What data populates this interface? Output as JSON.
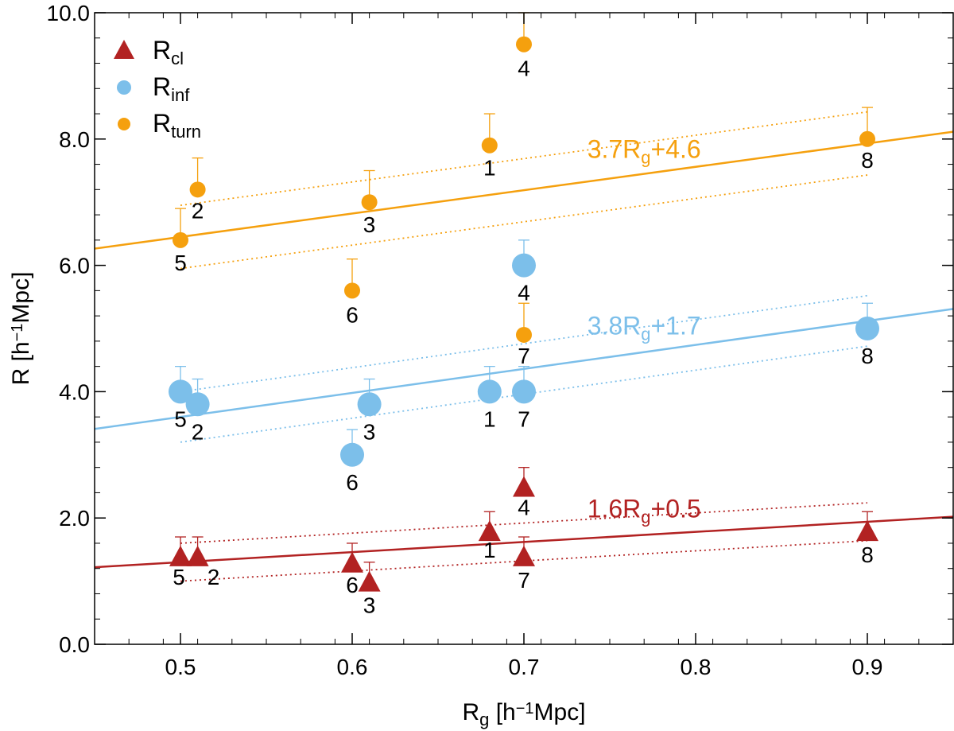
{
  "chart_data": {
    "type": "scatter",
    "xlabel_main": "R",
    "xlabel_sub": "g",
    "xlabel_unit": "[h",
    "xlabel_exp": "−1",
    "xlabel_tail": "Mpc]",
    "ylabel_main": "R [h",
    "ylabel_exp": "−1",
    "ylabel_tail": "Mpc]",
    "xlim": [
      0.45,
      0.95
    ],
    "ylim": [
      0.0,
      10.0
    ],
    "xticks": [
      0.5,
      0.6,
      0.7,
      0.8,
      0.9
    ],
    "xtick_labels": [
      "0.5",
      "0.6",
      "0.7",
      "0.8",
      "0.9"
    ],
    "yticks": [
      0,
      2,
      4,
      6,
      8,
      10
    ],
    "ytick_labels": [
      "0.0",
      "2.0",
      "4.0",
      "6.0",
      "8.0",
      "10.0"
    ],
    "legend_position": "top-left",
    "series": [
      {
        "name": "R_cl",
        "legend_main": "R",
        "legend_sub": "cl",
        "marker": "triangle",
        "color": "#b22222",
        "fit": {
          "slope": 1.6,
          "intercept": 0.5,
          "label_main": "1.6R",
          "label_sub": "g",
          "label_tail": "+0.5",
          "band_offset": 0.3,
          "band_x": [
            0.5,
            0.9
          ]
        },
        "points": [
          {
            "label": "1",
            "x": 0.68,
            "y": 1.8,
            "err": 0.3
          },
          {
            "label": "2",
            "x": 0.51,
            "y": 1.4,
            "err": 0.3
          },
          {
            "label": "3",
            "x": 0.61,
            "y": 1.0,
            "err": 0.3
          },
          {
            "label": "4",
            "x": 0.7,
            "y": 2.5,
            "err": 0.3
          },
          {
            "label": "5",
            "x": 0.5,
            "y": 1.4,
            "err": 0.3
          },
          {
            "label": "6",
            "x": 0.6,
            "y": 1.3,
            "err": 0.3
          },
          {
            "label": "7",
            "x": 0.7,
            "y": 1.4,
            "err": 0.3
          },
          {
            "label": "8",
            "x": 0.9,
            "y": 1.8,
            "err": 0.3
          }
        ]
      },
      {
        "name": "R_inf",
        "legend_main": "R",
        "legend_sub": "inf",
        "marker": "big-circle",
        "color": "#7cbfea",
        "fit": {
          "slope": 3.8,
          "intercept": 1.7,
          "label_main": "3.8R",
          "label_sub": "g",
          "label_tail": "+1.7",
          "band_offset": 0.4,
          "band_x": [
            0.5,
            0.9
          ]
        },
        "points": [
          {
            "label": "1",
            "x": 0.68,
            "y": 4.0,
            "err": 0.4
          },
          {
            "label": "2",
            "x": 0.51,
            "y": 3.8,
            "err": 0.4
          },
          {
            "label": "3",
            "x": 0.61,
            "y": 3.8,
            "err": 0.4
          },
          {
            "label": "4",
            "x": 0.7,
            "y": 6.0,
            "err": 0.4
          },
          {
            "label": "5",
            "x": 0.5,
            "y": 4.0,
            "err": 0.4
          },
          {
            "label": "6",
            "x": 0.6,
            "y": 3.0,
            "err": 0.4
          },
          {
            "label": "7",
            "x": 0.7,
            "y": 4.0,
            "err": 0.4
          },
          {
            "label": "8",
            "x": 0.9,
            "y": 5.0,
            "err": 0.4
          }
        ]
      },
      {
        "name": "R_turn",
        "legend_main": "R",
        "legend_sub": "turn",
        "marker": "circle",
        "color": "#f5a00e",
        "fit": {
          "slope": 3.7,
          "intercept": 4.6,
          "label_main": "3.7R",
          "label_sub": "g",
          "label_tail": "+4.6",
          "band_offset": 0.5,
          "band_x": [
            0.5,
            0.9
          ]
        },
        "points": [
          {
            "label": "1",
            "x": 0.68,
            "y": 7.9,
            "err": 0.5
          },
          {
            "label": "2",
            "x": 0.51,
            "y": 7.2,
            "err": 0.5
          },
          {
            "label": "3",
            "x": 0.61,
            "y": 7.0,
            "err": 0.5
          },
          {
            "label": "4",
            "x": 0.7,
            "y": 9.5,
            "err": 0.5
          },
          {
            "label": "5",
            "x": 0.5,
            "y": 6.4,
            "err": 0.5
          },
          {
            "label": "6",
            "x": 0.6,
            "y": 5.6,
            "err": 0.5
          },
          {
            "label": "7",
            "x": 0.7,
            "y": 4.9,
            "err": 0.5
          },
          {
            "label": "8",
            "x": 0.9,
            "y": 8.0,
            "err": 0.5
          }
        ]
      }
    ]
  }
}
